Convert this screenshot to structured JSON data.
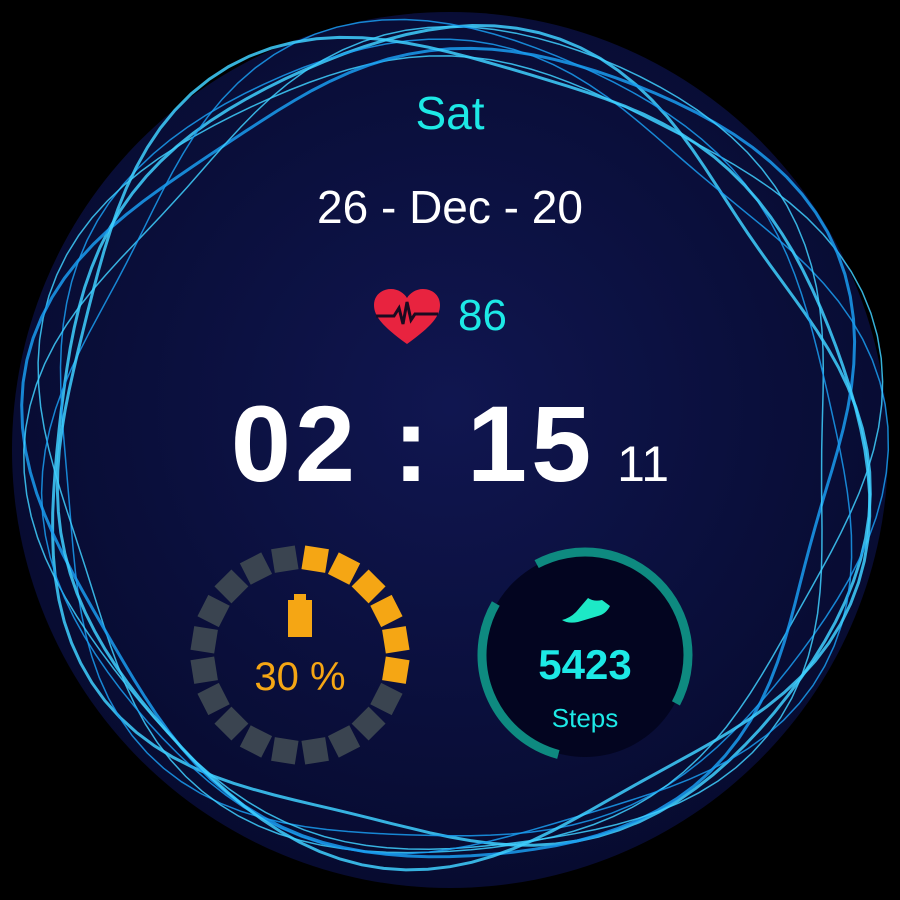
{
  "watch": {
    "day": "Sat",
    "date": "26 - Dec - 20",
    "heart_rate": "86",
    "time": "02 : 15",
    "seconds": "11",
    "battery": {
      "label": "30 %",
      "percent": 30,
      "segments": 20,
      "color": "#f5a614",
      "inactive_color": "#3a4450"
    },
    "steps": {
      "count": "5423",
      "label": "Steps",
      "ring_color": "#0e8a80"
    },
    "icons": [
      "heart-rate-icon",
      "battery-icon",
      "shoe-icon"
    ],
    "colors": {
      "accent": "#1de9e6",
      "background": "#0a0f3a",
      "ring_glow": "#1a9cf0",
      "heart": "#e8233f"
    }
  }
}
